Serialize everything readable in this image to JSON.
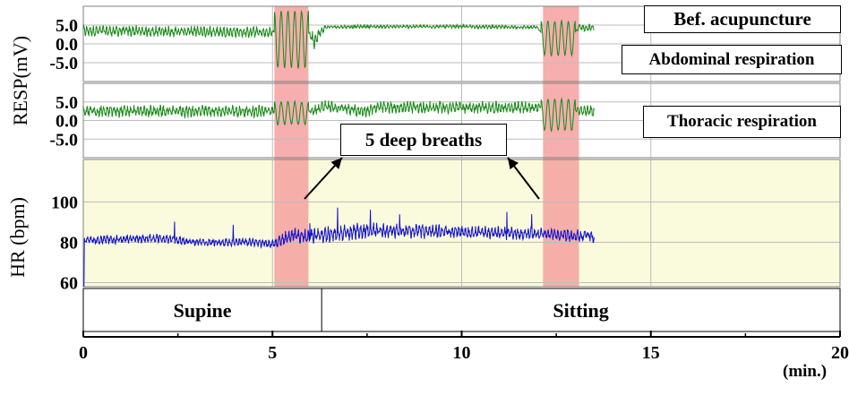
{
  "chart_data": {
    "type": "line",
    "x_axis": {
      "ticks": [
        "0",
        "5",
        "10",
        "15",
        "20"
      ],
      "tick_values": [
        0,
        5,
        10,
        15,
        20
      ],
      "unit_label": "(min.)",
      "xlim": [
        0,
        20
      ]
    },
    "panels": [
      {
        "name": "RESP abdominal",
        "ylabel": "RESP(mV)",
        "yticks": [
          "5.0",
          "0.0",
          "-5.0"
        ],
        "ytick_values": [
          5,
          0,
          -5
        ],
        "ylim": [
          -10,
          10
        ],
        "box_label": "Abdominal respiration",
        "series": [
          {
            "color": "#1a8a1a",
            "baseline": [
              [
                0,
                3.5
              ],
              [
                4,
                3.2
              ],
              [
                5,
                3.0
              ],
              [
                5.05,
                3.0
              ],
              [
                5.95,
                3.0
              ],
              [
                6.1,
                1.0
              ],
              [
                6.4,
                4.5
              ],
              [
                7.5,
                4.6
              ],
              [
                10,
                4.6
              ],
              [
                12,
                4.4
              ],
              [
                12.1,
                3.0
              ],
              [
                13,
                3.0
              ],
              [
                13.1,
                4.3
              ],
              [
                13.5,
                4.3
              ]
            ],
            "noise_amp": [
              [
                0,
                1.6
              ],
              [
                5,
                1.6
              ],
              [
                5.05,
                0
              ],
              [
                5.95,
                0
              ],
              [
                6.1,
                3.0
              ],
              [
                6.4,
                0.5
              ],
              [
                12,
                0.5
              ],
              [
                12.1,
                0
              ],
              [
                13,
                0
              ],
              [
                13.1,
                1.0
              ],
              [
                13.5,
                1.0
              ]
            ],
            "deep_breaths": [
              {
                "start": 5.05,
                "end": 5.95,
                "count": 5,
                "amp": 7.5,
                "center": 1.2
              },
              {
                "start": 12.1,
                "end": 13.0,
                "count": 5,
                "amp": 4.5,
                "center": 1.5
              }
            ],
            "x_end": 13.5
          }
        ]
      },
      {
        "name": "RESP thoracic",
        "yticks": [
          "5.0",
          "0.0",
          "-5.0"
        ],
        "ytick_values": [
          5,
          0,
          -5
        ],
        "ylim": [
          -10,
          10
        ],
        "box_label": "Thoracic respiration",
        "series": [
          {
            "color": "#1a8a1a",
            "baseline": [
              [
                0,
                2.5
              ],
              [
                5,
                2.5
              ],
              [
                6,
                2.5
              ],
              [
                6.4,
                3.8
              ],
              [
                7.4,
                2.5
              ],
              [
                7.8,
                3.5
              ],
              [
                10,
                3.5
              ],
              [
                12,
                3.5
              ],
              [
                13.5,
                2.5
              ]
            ],
            "noise_amp": [
              [
                0,
                1.8
              ],
              [
                5,
                1.8
              ],
              [
                5.05,
                0
              ],
              [
                5.95,
                0
              ],
              [
                6.1,
                1.8
              ],
              [
                12,
                1.8
              ],
              [
                12.1,
                0
              ],
              [
                13,
                0
              ],
              [
                13.1,
                1.5
              ],
              [
                13.5,
                1.5
              ]
            ],
            "deep_breaths": [
              {
                "start": 5.05,
                "end": 5.95,
                "count": 5,
                "amp": 3.0,
                "center": 2.0
              },
              {
                "start": 12.1,
                "end": 13.0,
                "count": 5,
                "amp": 4.2,
                "center": 1.5
              }
            ],
            "x_end": 13.5
          }
        ]
      },
      {
        "name": "HR",
        "ylabel": "HR (bpm)",
        "yticks": [
          "100",
          "80",
          "60"
        ],
        "ytick_values": [
          100,
          80,
          60
        ],
        "ylim": [
          58,
          121
        ],
        "series": [
          {
            "color": "#1010cc",
            "baseline": [
              [
                0,
                81
              ],
              [
                2,
                82
              ],
              [
                3,
                80
              ],
              [
                4.5,
                80
              ],
              [
                5,
                79
              ],
              [
                5.5,
                83
              ],
              [
                6.4,
                83.5
              ],
              [
                7.5,
                86
              ],
              [
                10,
                85
              ],
              [
                12,
                84
              ],
              [
                13.5,
                83
              ]
            ],
            "noise_amp": [
              [
                0,
                2.3
              ],
              [
                5,
                2.3
              ],
              [
                5.3,
                4
              ],
              [
                6.5,
                4.5
              ],
              [
                10,
                3.5
              ],
              [
                13.5,
                3.5
              ]
            ],
            "x_end": 13.5
          }
        ]
      }
    ],
    "deep_breath_windows": [
      [
        5.05,
        5.95
      ],
      [
        12.15,
        13.1
      ]
    ],
    "highlight_color": "#f4a0a0",
    "hr_background": "#fafadc",
    "posture_segments": [
      {
        "label": "Supine",
        "start": 0,
        "end": 6.3
      },
      {
        "label": "Sitting",
        "start": 6.3,
        "end": 20
      }
    ],
    "annotations": {
      "top_label": "Bef. acupuncture",
      "callout": "5 deep breaths"
    }
  }
}
